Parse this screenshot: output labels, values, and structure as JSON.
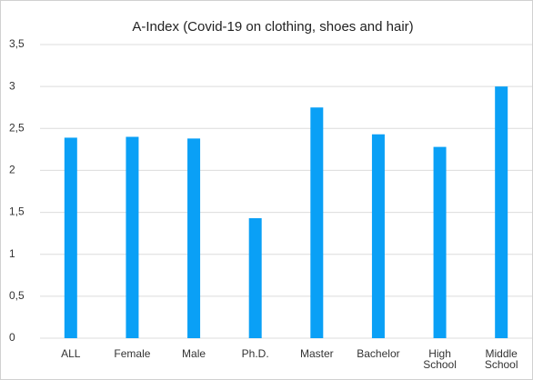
{
  "chart_data": {
    "type": "bar",
    "title": "A-Index (Covid-19 on clothing, shoes and hair)",
    "categories": [
      "ALL",
      "Female",
      "Male",
      "Ph.D.",
      "Master",
      "Bachelor",
      "High School",
      "Middle School"
    ],
    "values": [
      2.39,
      2.4,
      2.38,
      1.43,
      2.75,
      2.43,
      2.28,
      3.0
    ],
    "color": "#0aa0f6",
    "ylim": [
      0,
      3.5
    ],
    "yticks": [
      0,
      {
        "value": 0.5,
        "label": "0,5"
      },
      1,
      {
        "value": 1.5,
        "label": "1,5"
      },
      2,
      {
        "value": 2.5,
        "label": "2,5"
      },
      3,
      {
        "value": 3.5,
        "label": "3,5"
      }
    ],
    "grid": true
  }
}
